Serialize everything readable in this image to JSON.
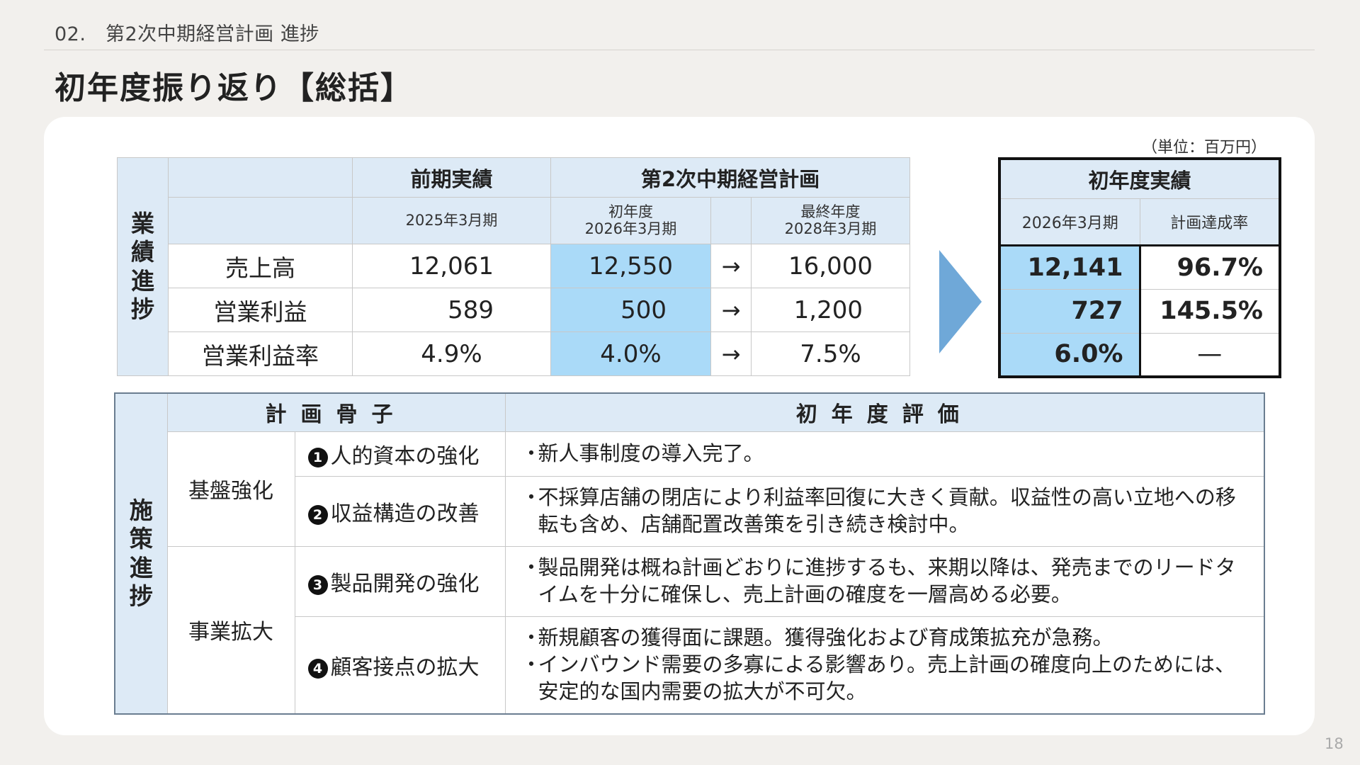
{
  "header": {
    "section_label": "02.　第2次中期経営計画 進捗",
    "title": "初年度振り返り【総括】",
    "page_number": "18"
  },
  "unit_note": "（単位：百万円）",
  "performance": {
    "side_label": "業\n績\n進\n捗",
    "col_prev": "前期実績",
    "col_plan": "第2次中期経営計画",
    "sub_prev": "2025年3月期",
    "sub_plan_first": "初年度\n2026年3月期",
    "sub_plan_final": "最終年度\n2028年3月期",
    "arrow": "→",
    "rows": [
      {
        "label": "売上高",
        "prev": "12,061",
        "plan_first": "12,550",
        "plan_final": "16,000"
      },
      {
        "label": "営業利益",
        "prev": "589",
        "plan_first": "500",
        "plan_final": "1,200"
      },
      {
        "label": "営業利益率",
        "prev": "4.9%",
        "plan_first": "4.0%",
        "plan_final": "7.5%"
      }
    ]
  },
  "result": {
    "title": "初年度実績",
    "sub_period": "2026年3月期",
    "sub_rate": "計画達成率",
    "rows": [
      {
        "actual": "12,141",
        "rate": "96.7%"
      },
      {
        "actual": "727",
        "rate": "145.5%"
      },
      {
        "actual": "6.0%",
        "rate": "—"
      }
    ]
  },
  "measures": {
    "side_label": "施\n策\n進\n捗",
    "col_plan": "計画骨子",
    "col_eval": "初年度評価",
    "groups": [
      {
        "category": "基盤強化",
        "items": [
          {
            "num": "1",
            "title": "人的資本の強化",
            "evals": [
              "新人事制度の導入完了。"
            ]
          },
          {
            "num": "2",
            "title": "収益構造の改善",
            "evals": [
              "不採算店舗の閉店により利益率回復に大きく貢献。収益性の高い立地への移転も含め、店舗配置改善策を引き続き検討中。"
            ]
          }
        ]
      },
      {
        "category": "事業拡大",
        "items": [
          {
            "num": "3",
            "title": "製品開発の強化",
            "evals": [
              "製品開発は概ね計画どおりに進捗するも、来期以降は、発売までのリードタイムを十分に確保し、売上計画の確度を一層高める必要。"
            ]
          },
          {
            "num": "4",
            "title": "顧客接点の拡大",
            "evals": [
              "新規顧客の獲得面に課題。獲得強化および育成策拡充が急務。",
              "インバウンド需要の多寡による影響あり。売上計画の確度向上のためには、安定的な国内需要の拡大が不可欠。"
            ]
          }
        ]
      }
    ]
  }
}
